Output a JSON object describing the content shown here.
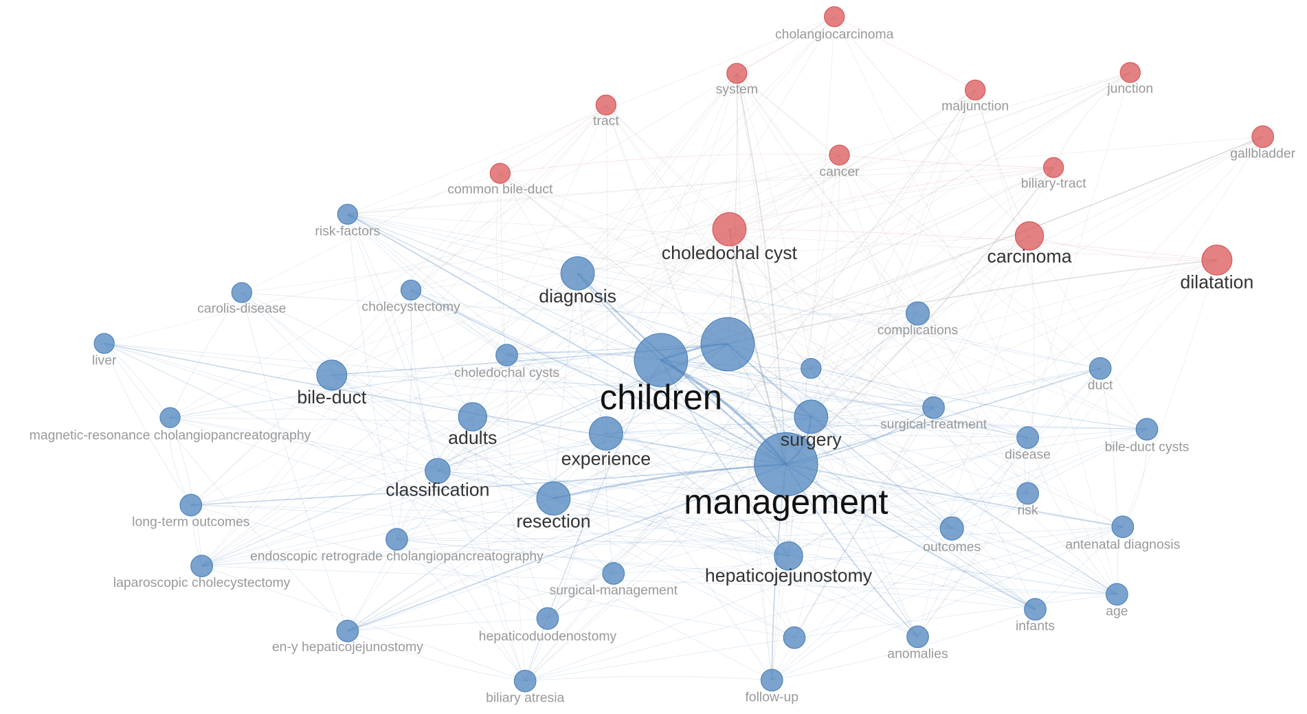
{
  "clusters": [
    {
      "color": "#d9575a",
      "nodes": [
        "cholangiocarcinoma",
        "system",
        "maljunction",
        "junction",
        "tract",
        "cancer",
        "biliary-tract",
        "gallbladder",
        "common bile-duct",
        "choledochal cyst",
        "carcinoma",
        "dilatation"
      ]
    },
    {
      "color": "#4f84bd",
      "nodes": [
        "risk-factors",
        "carolis-disease",
        "cholecystectomy",
        "diagnosis",
        "liver",
        "complications",
        "choledochal cysts",
        "children",
        "bile-duct",
        "duct",
        "adults",
        "surgery",
        "surgical-treatment",
        "magnetic-resonance cholangiopancreatography",
        "experience",
        "disease",
        "bile-duct cysts",
        "classification",
        "management",
        "resection",
        "long-term outcomes",
        "risk",
        "endoscopic retrograde cholangiopancreatography",
        "outcomes",
        "antenatal diagnosis",
        "hepaticojejunostomy",
        "laparoscopic cholecystectomy",
        "surgical-management",
        "age",
        "infants",
        "en-y hepaticojejunostomy",
        "hepaticoduodenostomy",
        "anomalies",
        "biliary atresia",
        "follow-up"
      ]
    }
  ]
}
